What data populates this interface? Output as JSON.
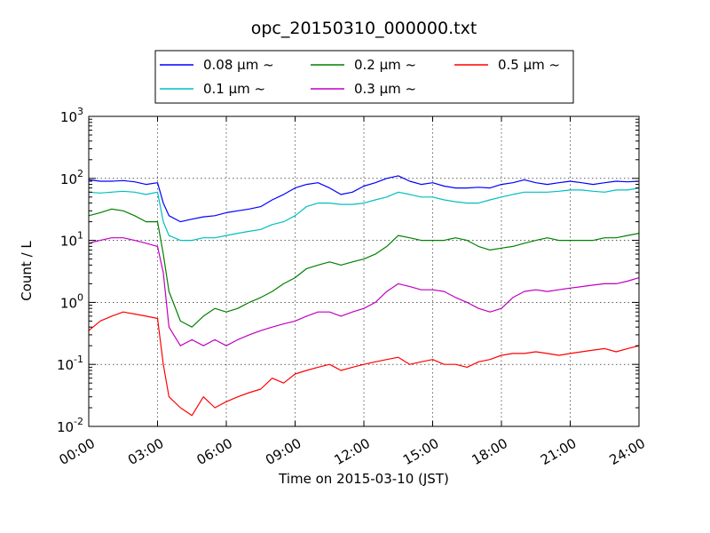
{
  "chart_data": {
    "type": "line",
    "title": "opc_20150310_000000.txt",
    "xlabel": "Time on 2015-03-10 (JST)",
    "ylabel": "Count / L",
    "x_unit": "hours",
    "xlim": [
      0,
      24
    ],
    "ylim": [
      0.01,
      1000
    ],
    "yscale": "log",
    "grid": true,
    "legend_position": "top-center",
    "x_ticks": [
      {
        "value": 0,
        "label": "00:00"
      },
      {
        "value": 3,
        "label": "03:00"
      },
      {
        "value": 6,
        "label": "06:00"
      },
      {
        "value": 9,
        "label": "09:00"
      },
      {
        "value": 12,
        "label": "12:00"
      },
      {
        "value": 15,
        "label": "15:00"
      },
      {
        "value": 18,
        "label": "18:00"
      },
      {
        "value": 21,
        "label": "21:00"
      },
      {
        "value": 24,
        "label": "24:00"
      }
    ],
    "y_ticks": [
      {
        "value": 0.01,
        "base": "10",
        "exp": "-2"
      },
      {
        "value": 0.1,
        "base": "10",
        "exp": "-1"
      },
      {
        "value": 1,
        "base": "10",
        "exp": "0"
      },
      {
        "value": 10,
        "base": "10",
        "exp": "1"
      },
      {
        "value": 100,
        "base": "10",
        "exp": "2"
      },
      {
        "value": 1000,
        "base": "10",
        "exp": "3"
      }
    ],
    "x": [
      0,
      0.5,
      1,
      1.5,
      2,
      2.5,
      3,
      3.25,
      3.5,
      4,
      4.5,
      5,
      5.5,
      6,
      6.5,
      7,
      7.5,
      8,
      8.5,
      9,
      9.5,
      10,
      10.5,
      11,
      11.5,
      12,
      12.5,
      13,
      13.5,
      14,
      14.5,
      15,
      15.5,
      16,
      16.5,
      17,
      17.5,
      18,
      18.5,
      19,
      19.5,
      20,
      20.5,
      21,
      21.5,
      22,
      22.5,
      23,
      23.5,
      24
    ],
    "series": [
      {
        "name": "0.08 μm ~",
        "color": "#0000ff",
        "values": [
          95,
          90,
          90,
          92,
          88,
          80,
          85,
          40,
          25,
          20,
          22,
          24,
          25,
          28,
          30,
          32,
          35,
          45,
          55,
          70,
          80,
          85,
          70,
          55,
          60,
          75,
          85,
          100,
          110,
          90,
          80,
          85,
          75,
          70,
          70,
          72,
          70,
          80,
          85,
          95,
          85,
          80,
          85,
          90,
          85,
          80,
          85,
          90,
          88,
          90
        ]
      },
      {
        "name": "0.1 μm ~",
        "color": "#00bfbf",
        "values": [
          60,
          58,
          60,
          62,
          60,
          55,
          60,
          20,
          12,
          10,
          10,
          11,
          11,
          12,
          13,
          14,
          15,
          18,
          20,
          25,
          35,
          40,
          40,
          38,
          38,
          40,
          45,
          50,
          60,
          55,
          50,
          50,
          45,
          42,
          40,
          40,
          45,
          50,
          55,
          60,
          60,
          60,
          62,
          65,
          65,
          62,
          60,
          65,
          65,
          70
        ]
      },
      {
        "name": "0.2 μm ~",
        "color": "#008000",
        "values": [
          25,
          28,
          32,
          30,
          25,
          20,
          20,
          6,
          1.5,
          0.5,
          0.4,
          0.6,
          0.8,
          0.7,
          0.8,
          1,
          1.2,
          1.5,
          2,
          2.5,
          3.5,
          4,
          4.5,
          4,
          4.5,
          5,
          6,
          8,
          12,
          11,
          10,
          10,
          10,
          11,
          10,
          8,
          7,
          7.5,
          8,
          9,
          10,
          11,
          10,
          10,
          10,
          10,
          11,
          11,
          12,
          13
        ]
      },
      {
        "name": "0.3 μm ~",
        "color": "#bf00bf",
        "values": [
          9,
          10,
          11,
          11,
          10,
          9,
          8,
          3,
          0.4,
          0.2,
          0.25,
          0.2,
          0.25,
          0.2,
          0.25,
          0.3,
          0.35,
          0.4,
          0.45,
          0.5,
          0.6,
          0.7,
          0.7,
          0.6,
          0.7,
          0.8,
          1,
          1.5,
          2,
          1.8,
          1.6,
          1.6,
          1.5,
          1.2,
          1.0,
          0.8,
          0.7,
          0.8,
          1.2,
          1.5,
          1.6,
          1.5,
          1.6,
          1.7,
          1.8,
          1.9,
          2,
          2,
          2.2,
          2.5
        ]
      },
      {
        "name": "0.5 μm ~",
        "color": "#ff0000",
        "values": [
          0.35,
          0.5,
          0.6,
          0.7,
          0.65,
          0.6,
          0.55,
          0.1,
          0.03,
          0.02,
          0.015,
          0.03,
          0.02,
          0.025,
          0.03,
          0.035,
          0.04,
          0.06,
          0.05,
          0.07,
          0.08,
          0.09,
          0.1,
          0.08,
          0.09,
          0.1,
          0.11,
          0.12,
          0.13,
          0.1,
          0.11,
          0.12,
          0.1,
          0.1,
          0.09,
          0.11,
          0.12,
          0.14,
          0.15,
          0.15,
          0.16,
          0.15,
          0.14,
          0.15,
          0.16,
          0.17,
          0.18,
          0.16,
          0.18,
          0.2
        ]
      }
    ]
  }
}
